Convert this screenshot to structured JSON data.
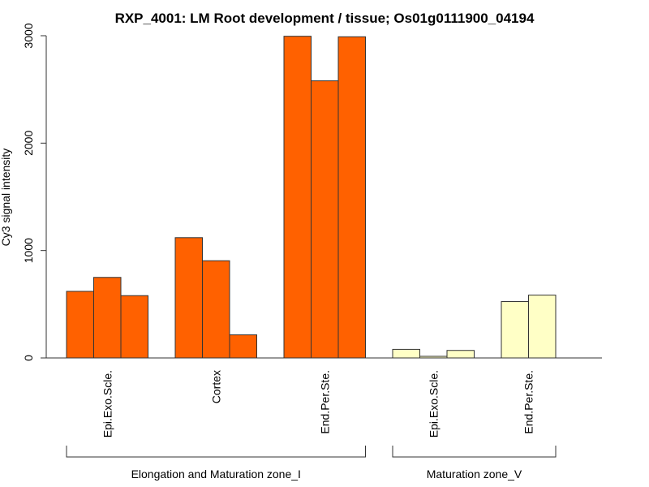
{
  "chart_data": {
    "type": "bar",
    "title": "RXP_4001: LM Root development / tissue; Os01g0111900_04194",
    "xlabel": "",
    "ylabel": "Cy3 signal intensity",
    "ylim": [
      0,
      3000
    ],
    "yticks": [
      0,
      1000,
      2000,
      3000
    ],
    "colors": {
      "zone_I": "#FF6100",
      "zone_V": "#FFFFC6",
      "bar_stroke": "#333333"
    },
    "groups": [
      {
        "name": "Elongation and Maturation zone_I",
        "color": "#FF6100",
        "categories": [
          {
            "label": "Epi.Exo.Scle.",
            "values": [
              620,
              750,
              580
            ]
          },
          {
            "label": "Cortex",
            "values": [
              1120,
              905,
              215
            ]
          },
          {
            "label": "End.Per.Ste.",
            "values": [
              2995,
              2580,
              2990
            ]
          }
        ]
      },
      {
        "name": "Maturation zone_V",
        "color": "#FFFFC6",
        "categories": [
          {
            "label": "Epi.Exo.Scle.",
            "values": [
              80,
              15,
              70
            ]
          },
          {
            "label": "End.Per.Ste.",
            "values": [
              525,
              585
            ]
          }
        ]
      }
    ]
  }
}
